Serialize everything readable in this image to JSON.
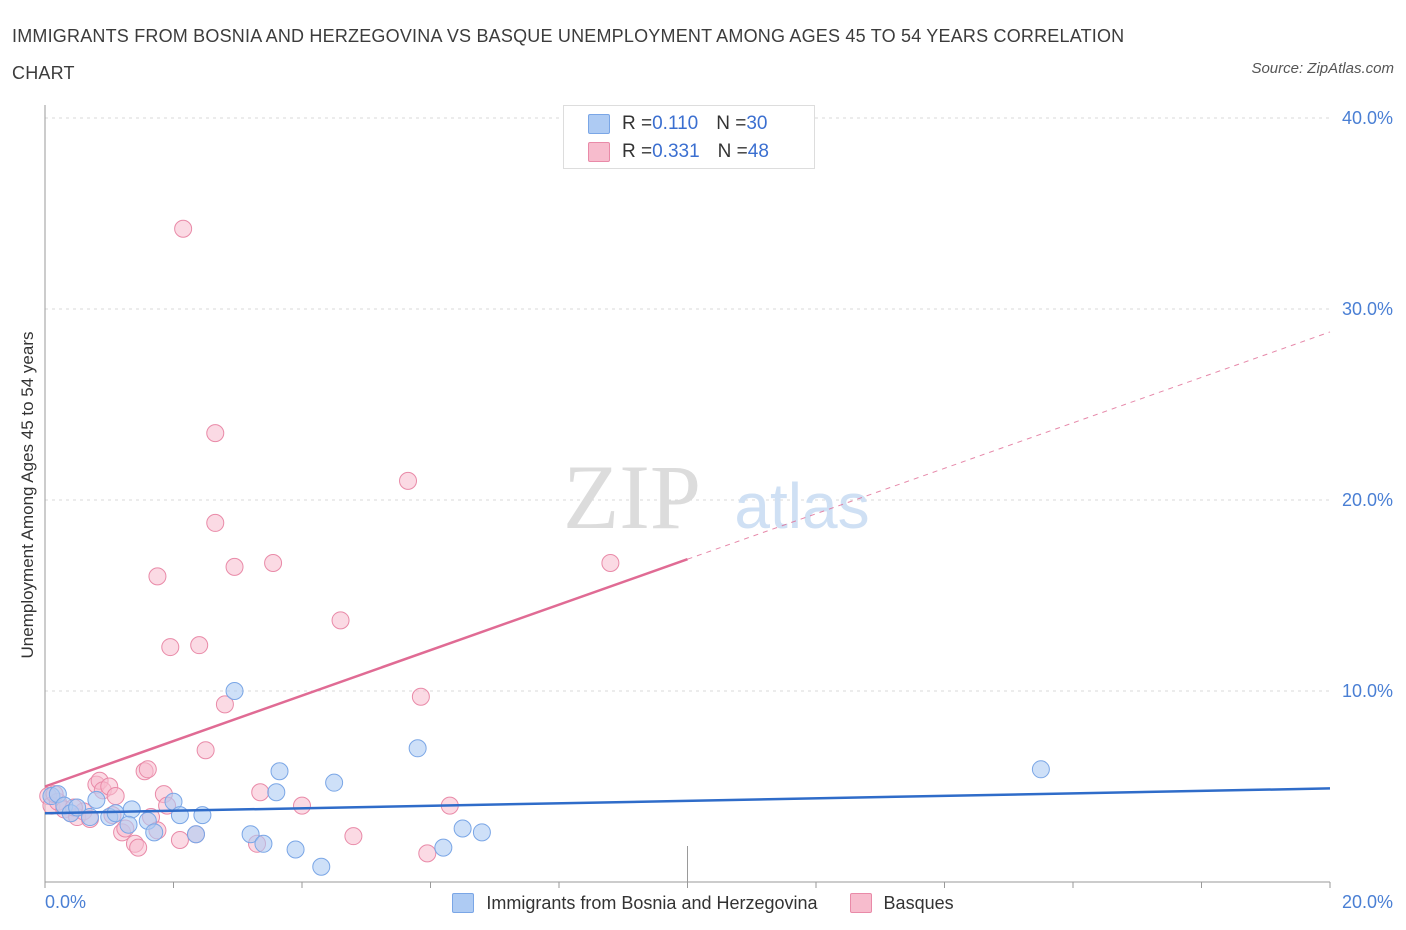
{
  "header": {
    "title": "IMMIGRANTS FROM BOSNIA AND HERZEGOVINA VS BASQUE UNEMPLOYMENT AMONG AGES 45 TO 54 YEARS CORRELATION CHART",
    "source": "Source: ZipAtlas.com"
  },
  "watermark": {
    "zip": "ZIP",
    "atlas": "atlas"
  },
  "colors": {
    "blue_fill": "#aecbf3",
    "blue_stroke": "#7aa6e6",
    "blue_line": "#2f6cc9",
    "pink_fill": "#f7bccd",
    "pink_stroke": "#e98aa8",
    "pink_line": "#e06b94",
    "grid": "#d9d9d9",
    "tick_text": "#4a7fd4"
  },
  "legend_top": {
    "rows": [
      {
        "r_label": "R = ",
        "r_value": "0.110",
        "n_label": "N = ",
        "n_value": "30"
      },
      {
        "r_label": "R = ",
        "r_value": "0.331",
        "n_label": "N = ",
        "n_value": "48"
      }
    ]
  },
  "legend_bottom": {
    "series1": "Immigrants from Bosnia and Herzegovina",
    "series2": "Basques"
  },
  "chart_data": {
    "type": "scatter",
    "title": "IMMIGRANTS FROM BOSNIA AND HERZEGOVINA VS BASQUE UNEMPLOYMENT AMONG AGES 45 TO 54 YEARS CORRELATION CHART",
    "xlabel": "",
    "ylabel": "Unemployment Among Ages 45 to 54 years",
    "xlim": [
      0,
      20
    ],
    "ylim": [
      0,
      40
    ],
    "x_tick_labels": [
      "0.0%",
      "20.0%"
    ],
    "y_ticks": [
      10,
      20,
      30,
      40
    ],
    "y_tick_labels": [
      "10.0%",
      "20.0%",
      "30.0%",
      "40.0%"
    ],
    "grid": true,
    "series": [
      {
        "name": "Immigrants from Bosnia and Herzegovina",
        "color": "#aecbf3",
        "R": 0.11,
        "N": 30,
        "trend": {
          "x": [
            0,
            20
          ],
          "y": [
            3.6,
            4.9
          ],
          "extrapolated_from": null
        },
        "points": [
          [
            0.1,
            4.5
          ],
          [
            0.2,
            4.6
          ],
          [
            0.3,
            4.0
          ],
          [
            0.4,
            3.6
          ],
          [
            0.5,
            3.9
          ],
          [
            0.7,
            3.4
          ],
          [
            0.8,
            4.3
          ],
          [
            1.0,
            3.4
          ],
          [
            1.1,
            3.6
          ],
          [
            1.35,
            3.8
          ],
          [
            1.3,
            3.0
          ],
          [
            1.6,
            3.2
          ],
          [
            1.7,
            2.6
          ],
          [
            2.0,
            4.2
          ],
          [
            2.1,
            3.5
          ],
          [
            2.35,
            2.5
          ],
          [
            2.45,
            3.5
          ],
          [
            2.95,
            10.0
          ],
          [
            3.2,
            2.5
          ],
          [
            3.4,
            2.0
          ],
          [
            3.6,
            4.7
          ],
          [
            3.65,
            5.8
          ],
          [
            3.9,
            1.7
          ],
          [
            4.3,
            0.8
          ],
          [
            4.5,
            5.2
          ],
          [
            5.8,
            7.0
          ],
          [
            6.2,
            1.8
          ],
          [
            6.5,
            2.8
          ],
          [
            6.8,
            2.6
          ],
          [
            15.5,
            5.9
          ]
        ]
      },
      {
        "name": "Basques",
        "color": "#f7bccd",
        "R": 0.331,
        "N": 48,
        "trend": {
          "x": [
            0,
            20
          ],
          "y": [
            5.0,
            28.8
          ],
          "solid_until_x": 10.0
        },
        "points": [
          [
            0.05,
            4.5
          ],
          [
            0.1,
            4.0
          ],
          [
            0.2,
            4.2
          ],
          [
            0.3,
            3.8
          ],
          [
            0.4,
            3.6
          ],
          [
            0.5,
            3.4
          ],
          [
            0.6,
            3.7
          ],
          [
            0.7,
            3.3
          ],
          [
            0.8,
            5.1
          ],
          [
            0.85,
            5.3
          ],
          [
            0.9,
            4.8
          ],
          [
            1.0,
            5.0
          ],
          [
            1.05,
            3.5
          ],
          [
            1.1,
            4.5
          ],
          [
            1.2,
            2.6
          ],
          [
            1.25,
            2.8
          ],
          [
            1.4,
            2.0
          ],
          [
            1.45,
            1.8
          ],
          [
            1.55,
            5.8
          ],
          [
            1.6,
            5.9
          ],
          [
            1.65,
            3.4
          ],
          [
            1.75,
            2.7
          ],
          [
            1.75,
            16.0
          ],
          [
            1.85,
            4.6
          ],
          [
            1.9,
            4.0
          ],
          [
            1.95,
            12.3
          ],
          [
            2.1,
            2.2
          ],
          [
            2.15,
            34.2
          ],
          [
            2.35,
            2.5
          ],
          [
            2.4,
            12.4
          ],
          [
            2.5,
            6.9
          ],
          [
            2.65,
            23.5
          ],
          [
            2.65,
            18.8
          ],
          [
            2.8,
            9.3
          ],
          [
            2.95,
            16.5
          ],
          [
            3.35,
            4.7
          ],
          [
            3.3,
            2.0
          ],
          [
            3.55,
            16.7
          ],
          [
            4.0,
            4.0
          ],
          [
            4.6,
            13.7
          ],
          [
            4.8,
            2.4
          ],
          [
            5.65,
            21.0
          ],
          [
            5.85,
            9.7
          ],
          [
            5.95,
            1.5
          ],
          [
            6.3,
            4.0
          ],
          [
            8.8,
            16.7
          ],
          [
            0.15,
            4.6
          ],
          [
            0.45,
            3.9
          ]
        ]
      }
    ]
  }
}
